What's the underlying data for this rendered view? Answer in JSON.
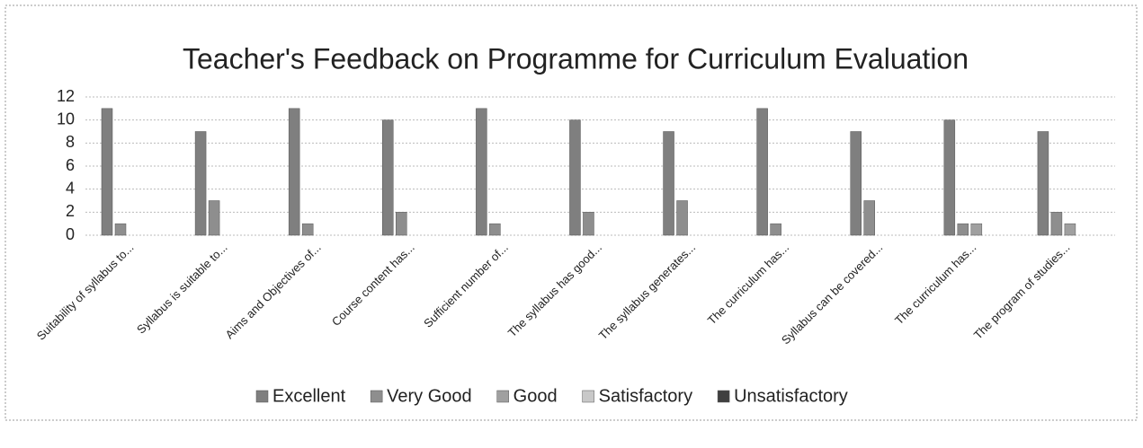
{
  "chart_data": {
    "type": "bar",
    "title": "Teacher's Feedback on Programme for Curriculum Evaluation",
    "categories": [
      "Suitability of syllabus to...",
      "Syllabus is suitable to...",
      "Aims and Objectives of...",
      "Course content has...",
      "Sufficient number of...",
      "The syllabus has good...",
      "The syllabus generates...",
      "The curriculum has...",
      "Syllabus can be covered...",
      "The curriculum has...",
      "The program of studies..."
    ],
    "series": [
      {
        "name": "Excellent",
        "color": "#7f7f7f",
        "values": [
          11,
          9,
          11,
          10,
          11,
          10,
          9,
          11,
          9,
          10,
          9
        ]
      },
      {
        "name": "Very Good",
        "color": "#8e8e8e",
        "values": [
          1,
          3,
          1,
          2,
          1,
          2,
          3,
          1,
          3,
          1,
          2
        ]
      },
      {
        "name": "Good",
        "color": "#a0a0a0",
        "values": [
          0,
          0,
          0,
          0,
          0,
          0,
          0,
          0,
          0,
          1,
          1
        ]
      },
      {
        "name": "Satisfactory",
        "color": "#c8c8c8",
        "values": [
          0,
          0,
          0,
          0,
          0,
          0,
          0,
          0,
          0,
          0,
          0
        ]
      },
      {
        "name": "Unsatisfactory",
        "color": "#404040",
        "values": [
          0,
          0,
          0,
          0,
          0,
          0,
          0,
          0,
          0,
          0,
          0
        ]
      }
    ],
    "ylim": [
      0,
      12
    ],
    "yticks": [
      0,
      2,
      4,
      6,
      8,
      10,
      12
    ],
    "grid": true,
    "legend": "bottom"
  }
}
